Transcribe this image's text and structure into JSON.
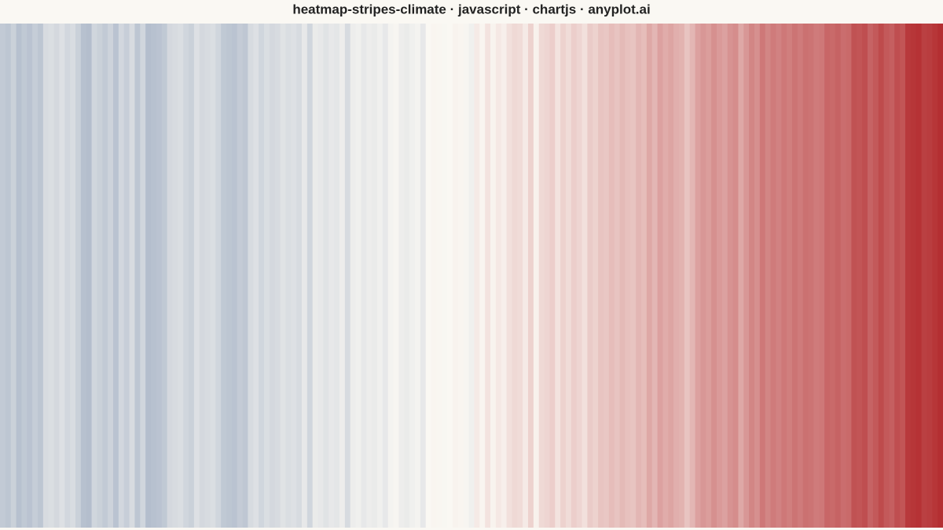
{
  "chart_data": {
    "type": "stripes",
    "title": "heatmap-stripes-climate · javascript · chartjs · anyplot.ai",
    "colorlim": [
      -1.2,
      1.2
    ],
    "colors": [
      "#3a5a8c",
      "#faf8f3",
      "#b2282b"
    ],
    "values": [
      -0.35,
      -0.38,
      -0.3,
      -0.42,
      -0.36,
      -0.4,
      -0.33,
      -0.38,
      -0.22,
      -0.2,
      -0.24,
      -0.18,
      -0.25,
      -0.21,
      -0.3,
      -0.42,
      -0.44,
      -0.26,
      -0.3,
      -0.35,
      -0.28,
      -0.4,
      -0.25,
      -0.32,
      -0.22,
      -0.38,
      -0.26,
      -0.44,
      -0.42,
      -0.4,
      -0.36,
      -0.24,
      -0.22,
      -0.2,
      -0.26,
      -0.3,
      -0.18,
      -0.24,
      -0.22,
      -0.2,
      -0.26,
      -0.36,
      -0.38,
      -0.4,
      -0.34,
      -0.37,
      -0.22,
      -0.18,
      -0.26,
      -0.2,
      -0.24,
      -0.22,
      -0.16,
      -0.2,
      -0.18,
      -0.22,
      -0.12,
      -0.26,
      -0.1,
      -0.12,
      -0.16,
      -0.12,
      -0.14,
      -0.08,
      -0.22,
      -0.08,
      -0.06,
      -0.12,
      -0.08,
      -0.1,
      -0.06,
      -0.12,
      -0.04,
      -0.02,
      -0.08,
      -0.1,
      -0.06,
      -0.04,
      -0.12,
      0.0,
      0.02,
      0.01,
      -0.01,
      0.0,
      0.03,
      0.02,
      -0.02,
      -0.06,
      0.08,
      0.02,
      0.12,
      0.03,
      0.09,
      0.05,
      0.14,
      0.18,
      0.16,
      0.08,
      0.22,
      0.04,
      0.18,
      0.2,
      0.24,
      0.12,
      0.22,
      0.16,
      0.24,
      0.2,
      0.14,
      0.26,
      0.22,
      0.3,
      0.28,
      0.34,
      0.3,
      0.36,
      0.32,
      0.3,
      0.38,
      0.34,
      0.46,
      0.38,
      0.5,
      0.44,
      0.48,
      0.42,
      0.4,
      0.3,
      0.38,
      0.5,
      0.56,
      0.52,
      0.6,
      0.54,
      0.5,
      0.58,
      0.62,
      0.46,
      0.56,
      0.66,
      0.6,
      0.74,
      0.66,
      0.72,
      0.68,
      0.74,
      0.7,
      0.76,
      0.72,
      0.78,
      0.76,
      0.72,
      0.74,
      0.84,
      0.82,
      0.86,
      0.8,
      0.82,
      0.96,
      0.94,
      0.98,
      0.86,
      0.92,
      1.0,
      0.92,
      0.88,
      0.98,
      0.94,
      1.1,
      1.12,
      1.14,
      1.06,
      1.08,
      1.12,
      1.16
    ]
  }
}
